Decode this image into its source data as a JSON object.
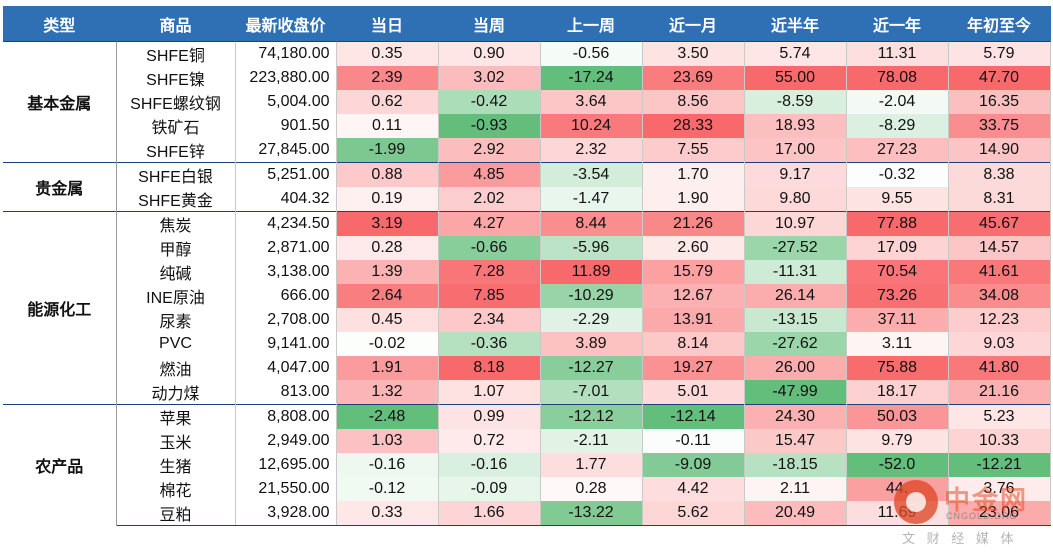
{
  "table": {
    "headers": [
      "类型",
      "商品",
      "最新收盘价",
      "当日",
      "当周",
      "上一周",
      "近一月",
      "近半年",
      "近一年",
      "年初至今"
    ],
    "groups": [
      {
        "category": "基本金属",
        "rows": [
          {
            "name": "SHFE铜",
            "price": "74,180.00",
            "values": [
              "0.35",
              "0.90",
              "-0.56",
              "3.50",
              "5.74",
              "11.31",
              "5.79"
            ]
          },
          {
            "name": "SHFE镍",
            "price": "223,880.00",
            "values": [
              "2.39",
              "3.02",
              "-17.24",
              "23.69",
              "55.00",
              "78.08",
              "47.70"
            ]
          },
          {
            "name": "SHFE螺纹钢",
            "price": "5,004.00",
            "values": [
              "0.62",
              "-0.42",
              "3.64",
              "8.56",
              "-8.59",
              "-2.04",
              "16.35"
            ]
          },
          {
            "name": "铁矿石",
            "price": "901.50",
            "values": [
              "0.11",
              "-0.93",
              "10.24",
              "28.33",
              "18.93",
              "-8.29",
              "33.75"
            ]
          },
          {
            "name": "SHFE锌",
            "price": "27,845.00",
            "values": [
              "-1.99",
              "2.92",
              "2.32",
              "7.55",
              "17.00",
              "27.23",
              "14.90"
            ]
          }
        ]
      },
      {
        "category": "贵金属",
        "rows": [
          {
            "name": "SHFE白银",
            "price": "5,251.00",
            "values": [
              "0.88",
              "4.85",
              "-3.54",
              "1.70",
              "9.17",
              "-0.32",
              "8.38"
            ]
          },
          {
            "name": "SHFE黄金",
            "price": "404.32",
            "values": [
              "0.19",
              "2.02",
              "-1.47",
              "1.90",
              "9.80",
              "9.55",
              "8.31"
            ]
          }
        ]
      },
      {
        "category": "能源化工",
        "rows": [
          {
            "name": "焦炭",
            "price": "4,234.50",
            "values": [
              "3.19",
              "4.27",
              "8.44",
              "21.26",
              "10.97",
              "77.88",
              "45.67"
            ]
          },
          {
            "name": "甲醇",
            "price": "2,871.00",
            "values": [
              "0.28",
              "-0.66",
              "-5.96",
              "2.60",
              "-27.52",
              "17.09",
              "14.57"
            ]
          },
          {
            "name": "纯碱",
            "price": "3,138.00",
            "values": [
              "1.39",
              "7.28",
              "11.89",
              "15.79",
              "-11.31",
              "70.54",
              "41.61"
            ]
          },
          {
            "name": "INE原油",
            "price": "666.00",
            "values": [
              "2.64",
              "7.85",
              "-10.29",
              "12.67",
              "26.14",
              "73.26",
              "34.08"
            ]
          },
          {
            "name": "尿素",
            "price": "2,708.00",
            "values": [
              "0.45",
              "2.34",
              "-2.29",
              "13.91",
              "-13.15",
              "37.11",
              "12.23"
            ]
          },
          {
            "name": "PVC",
            "price": "9,141.00",
            "values": [
              "-0.02",
              "-0.36",
              "3.89",
              "8.14",
              "-27.62",
              "3.11",
              "9.03"
            ]
          },
          {
            "name": "燃油",
            "price": "4,047.00",
            "values": [
              "1.91",
              "8.18",
              "-12.27",
              "19.27",
              "26.00",
              "75.88",
              "41.80"
            ]
          },
          {
            "name": "动力煤",
            "price": "813.00",
            "values": [
              "1.32",
              "1.07",
              "-7.01",
              "5.01",
              "-47.99",
              "18.17",
              "21.16"
            ]
          }
        ]
      },
      {
        "category": "农产品",
        "rows": [
          {
            "name": "苹果",
            "price": "8,808.00",
            "values": [
              "-2.48",
              "0.99",
              "-12.12",
              "-12.14",
              "24.30",
              "50.03",
              "5.23"
            ]
          },
          {
            "name": "玉米",
            "price": "2,949.00",
            "values": [
              "1.03",
              "0.72",
              "-2.11",
              "-0.11",
              "15.47",
              "9.79",
              "10.33"
            ]
          },
          {
            "name": "生猪",
            "price": "12,695.00",
            "values": [
              "-0.16",
              "-0.16",
              "1.77",
              "-9.09",
              "-18.15",
              "-52.0",
              "-12.21"
            ]
          },
          {
            "name": "棉花",
            "price": "21,550.00",
            "values": [
              "-0.12",
              "-0.09",
              "0.28",
              "4.42",
              "2.11",
              "44.",
              "3.76"
            ]
          },
          {
            "name": "豆粕",
            "price": "3,928.00",
            "values": [
              "0.33",
              "1.66",
              "-13.22",
              "5.62",
              "20.49",
              "11.69",
              "23.06"
            ]
          }
        ]
      }
    ]
  },
  "colors": {
    "header_bg": "#2f6fb4",
    "positive": "#f8696b",
    "negative": "#63be7b",
    "neutral": "#ffffff"
  },
  "watermark": {
    "brand": "中金网",
    "domain": "CNGOLD.ORG",
    "slogan": "文 财 经 媒 体"
  }
}
